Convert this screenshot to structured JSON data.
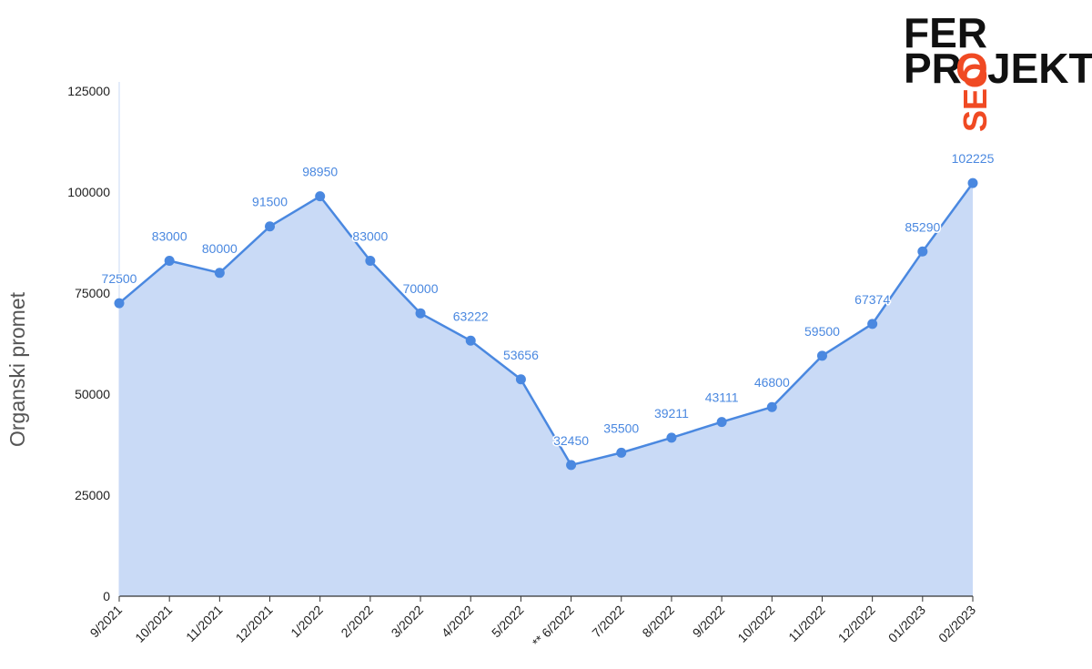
{
  "chart_data": {
    "type": "area",
    "title": "",
    "xlabel": "",
    "ylabel": "Organski promet",
    "categories": [
      "9/2021",
      "10/2021",
      "11/2021",
      "12/2021",
      "1/2022",
      "2/2022",
      "3/2022",
      "4/2022",
      "5/2022",
      "** 6/2022",
      "7/2022",
      "8/2022",
      "9/2022",
      "10/2022",
      "11/2022",
      "12/2022",
      "01/2023",
      "02/2023"
    ],
    "values": [
      72500,
      83000,
      80000,
      91500,
      98950,
      83000,
      70000,
      63222,
      53656,
      32450,
      35500,
      39211,
      43111,
      46800,
      59500,
      67374,
      85290,
      102225
    ],
    "ylim": [
      0,
      125000
    ],
    "yticks": [
      0,
      25000,
      50000,
      75000,
      100000,
      125000
    ],
    "grid": false,
    "legend": "none",
    "colors": {
      "line": "#4a88e0",
      "fill": "#c9daf6",
      "label": "#4a88e0"
    }
  },
  "logo": {
    "line1": "FER",
    "line2_left": "PR",
    "line2_o": "O",
    "line2_right": "JEKT",
    "vertical": "SEO",
    "text_color": "#111111",
    "accent_color": "#f04a23"
  }
}
